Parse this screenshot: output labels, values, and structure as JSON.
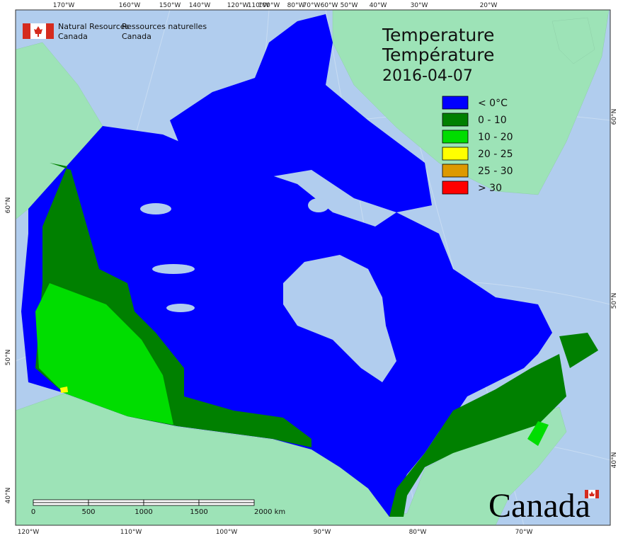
{
  "header": {
    "english": [
      "Natural Resources",
      "Canada"
    ],
    "french": [
      "Ressources naturelles",
      "Canada"
    ]
  },
  "title": [
    "Temperature",
    "Température",
    "2016-04-07"
  ],
  "legend": [
    {
      "label": "< 0°C",
      "color": "#0000ff"
    },
    {
      "label": "0 - 10",
      "color": "#008000"
    },
    {
      "label": "10 - 20",
      "color": "#00dd00"
    },
    {
      "label": "20 - 25",
      "color": "#ffff00"
    },
    {
      "label": "25 - 30",
      "color": "#dd9900"
    },
    {
      "label": "> 30",
      "color": "#ff0000"
    }
  ],
  "graticule": {
    "top": [
      "170°W",
      "160°W",
      "150°W",
      "140°W",
      "120°W",
      "110°W",
      "100°W",
      "80°W",
      "70°W",
      "60°W",
      "50°W",
      "40°W",
      "30°W",
      "20°W"
    ],
    "bottom": [
      "120°W",
      "110°W",
      "100°W",
      "90°W",
      "80°W",
      "70°W"
    ],
    "left": [
      "60°N",
      "50°N",
      "40°N"
    ],
    "right": [
      "60°N",
      "50°N",
      "40°N"
    ]
  },
  "scale_bar": [
    "0",
    "500",
    "1000",
    "1500",
    "2000 km"
  ],
  "wordmark": "Canada"
}
